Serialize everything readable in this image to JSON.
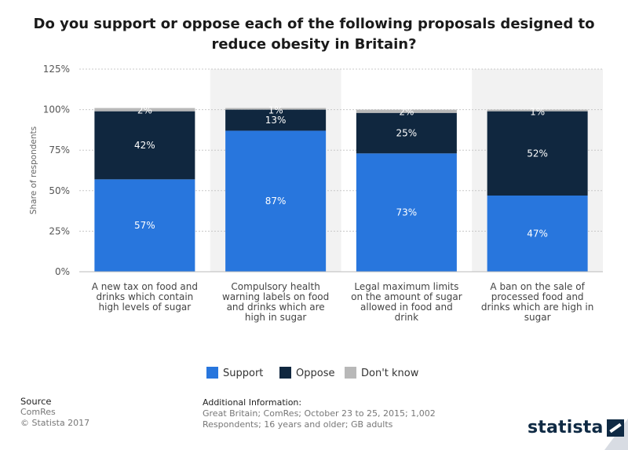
{
  "chart_data": {
    "type": "bar",
    "stacked": true,
    "title": "Do you support or oppose each of the following proposals designed to reduce obesity in Britain?",
    "ylabel": "Share of respondents",
    "ylim": [
      0,
      125
    ],
    "yticks": [
      "0%",
      "25%",
      "50%",
      "75%",
      "100%",
      "125%"
    ],
    "ytick_values": [
      0,
      25,
      50,
      75,
      100,
      125
    ],
    "grid": true,
    "legend_position": "bottom",
    "categories": [
      [
        "A new tax on food and",
        "drinks which contain",
        "high levels of sugar"
      ],
      [
        "Compulsory health",
        "warning labels on food",
        "and drinks which are",
        "high in sugar"
      ],
      [
        "Legal maximum limits",
        "on the amount of sugar",
        "allowed in food and",
        "drink"
      ],
      [
        "A ban on the sale of",
        "processed food and",
        "drinks which are high in",
        "sugar"
      ]
    ],
    "series": [
      {
        "name": "Support",
        "color": "#2876dd",
        "values": [
          57,
          87,
          73,
          47
        ],
        "labels": [
          "57%",
          "87%",
          "73%",
          "47%"
        ]
      },
      {
        "name": "Oppose",
        "color": "#10273f",
        "values": [
          42,
          13,
          25,
          52
        ],
        "labels": [
          "42%",
          "13%",
          "25%",
          "52%"
        ]
      },
      {
        "name": "Don't know",
        "color": "#b8b8b8",
        "values": [
          2,
          1,
          2,
          1
        ],
        "labels": [
          "2%",
          "1%",
          "2%",
          "1%"
        ]
      }
    ]
  },
  "footer": {
    "source_title": "Source",
    "source_name": "ComRes",
    "copyright": "© Statista 2017",
    "addinfo_title": "Additional Information:",
    "addinfo_line1": "Great Britain; ComRes; October 23 to 25, 2015; 1,002",
    "addinfo_line2": "Respondents; 16 years and older; GB adults",
    "logo_text": "statista"
  }
}
